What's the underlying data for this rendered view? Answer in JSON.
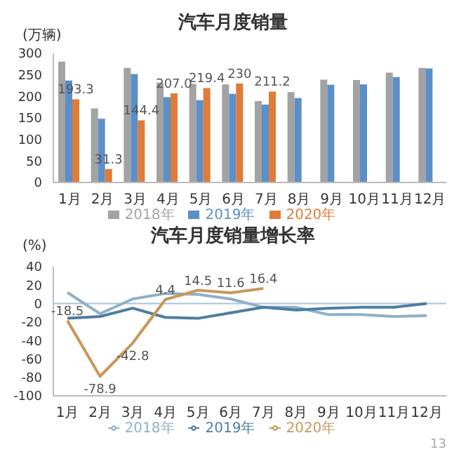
{
  "chart_data": [
    {
      "type": "bar",
      "title": "汽车月度销量",
      "ylabel": "(万辆)",
      "categories": [
        "1月",
        "2月",
        "3月",
        "4月",
        "5月",
        "6月",
        "7月",
        "8月",
        "9月",
        "10月",
        "11月",
        "12月"
      ],
      "series": [
        {
          "name": "2018年",
          "color": "#a3a3a3",
          "values": [
            281,
            172,
            266,
            232,
            229,
            228,
            189,
            210,
            239,
            238,
            255,
            266
          ]
        },
        {
          "name": "2019年",
          "color": "#5b8fc7",
          "values": [
            237,
            148,
            252,
            198,
            191,
            206,
            181,
            196,
            227,
            228,
            245,
            265
          ]
        },
        {
          "name": "2020年",
          "color": "#e07b39",
          "values": [
            193.3,
            31.3,
            144.4,
            207,
            219.4,
            230,
            211.2,
            null,
            null,
            null,
            null,
            null
          ],
          "value_labels": [
            "193.3",
            "31.3",
            "144.4",
            "207.0",
            "219.4",
            "230",
            "211.2",
            null,
            null,
            null,
            null,
            null
          ]
        }
      ],
      "ylim": [
        0,
        300
      ],
      "yticks": [
        0,
        50,
        100,
        150,
        200,
        250,
        300
      ],
      "grid": false,
      "legend": "bottom"
    },
    {
      "type": "line",
      "title": "汽车月度销量增长率",
      "ylabel": "(%)",
      "categories": [
        "1月",
        "2月",
        "3月",
        "4月",
        "5月",
        "6月",
        "7月",
        "8月",
        "9月",
        "10月",
        "11月",
        "12月"
      ],
      "series": [
        {
          "name": "2018年",
          "color": "#8fb0c8",
          "values": [
            12,
            -11,
            5,
            11,
            10,
            5,
            -4,
            -4,
            -12,
            -12,
            -14,
            -13
          ]
        },
        {
          "name": "2019年",
          "color": "#4d7ea0",
          "values": [
            -16,
            -14,
            -5,
            -15,
            -16,
            -10,
            -4,
            -7,
            -5,
            -4,
            -4,
            0
          ]
        },
        {
          "name": "2020年",
          "color": "#c8975a",
          "values": [
            -18.5,
            -78.9,
            -42.8,
            4.4,
            14.5,
            11.6,
            16.4,
            null,
            null,
            null,
            null,
            null
          ],
          "value_labels": [
            "-18.5",
            "-78.9",
            "-42.8",
            "4.4",
            "14.5",
            "11.6",
            "16.4",
            null,
            null,
            null,
            null,
            null
          ]
        }
      ],
      "ylim": [
        -100,
        40
      ],
      "yticks": [
        -100,
        -80,
        -60,
        -40,
        -20,
        0,
        20,
        40
      ],
      "ref_lines": [
        {
          "axis": "y",
          "value": 0,
          "color": "#a8c4d8"
        }
      ],
      "grid": false,
      "legend": "bottom",
      "annotations": [
        "13"
      ]
    }
  ]
}
